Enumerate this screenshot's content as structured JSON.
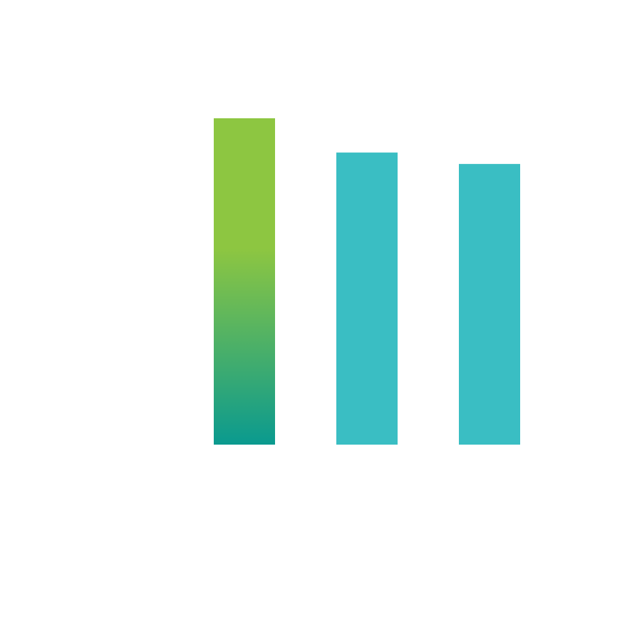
{
  "chart_data": {
    "type": "bar",
    "categories": [
      "",
      "",
      ""
    ],
    "values": [
      100,
      89.5,
      86
    ],
    "ylim": [
      0,
      100
    ],
    "grid": false,
    "legend": "none",
    "colors": {
      "highlight_top": "#8DC641",
      "highlight_bottom": "#0A9A8F",
      "default_bar": "#3ABEC3"
    }
  }
}
